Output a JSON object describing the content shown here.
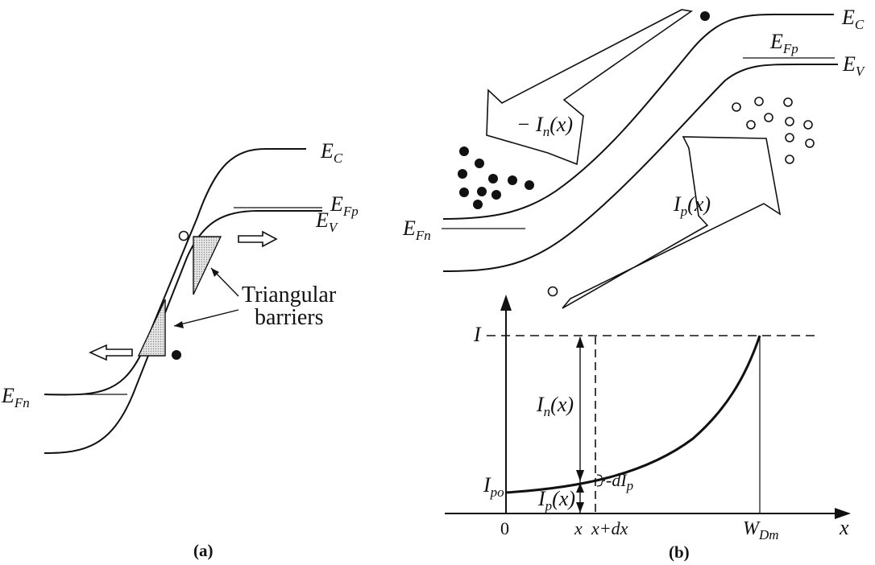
{
  "panel_a": {
    "caption": "(a)",
    "ec": {
      "main": "E",
      "sub": "C"
    },
    "ev": {
      "main": "E",
      "sub": "V"
    },
    "efp": {
      "main": "E",
      "sub": "Fp"
    },
    "efn": {
      "main": "E",
      "sub": "Fn"
    },
    "barrier_label": [
      "Triangular",
      "barriers"
    ]
  },
  "panel_b": {
    "caption": "(b)",
    "ec": {
      "main": "E",
      "sub": "C"
    },
    "ev": {
      "main": "E",
      "sub": "V"
    },
    "efp": {
      "main": "E",
      "sub": "Fp"
    },
    "efn": {
      "main": "E",
      "sub": "Fn"
    },
    "in_arrow": {
      "prefix": "− I",
      "sub": "n",
      "suffix": "(x)"
    },
    "ip_arrow": {
      "prefix": "I",
      "sub": "p",
      "suffix": "(x)"
    },
    "graph": {
      "y_label": "I",
      "ipo": {
        "main": "I",
        "sub": "po"
      },
      "in_x": {
        "main": "I",
        "sub": "n",
        "suffix": "(x)"
      },
      "ip_x": {
        "main": "I",
        "sub": "p",
        "suffix": "(x)"
      },
      "dip": {
        "prefix": "-dI",
        "sub": "p"
      },
      "tick_0": "0",
      "tick_x": "x",
      "tick_xdx": "x+dx",
      "tick_wdm": {
        "main": "W",
        "sub": "Dm"
      },
      "x_axis": "x"
    }
  }
}
